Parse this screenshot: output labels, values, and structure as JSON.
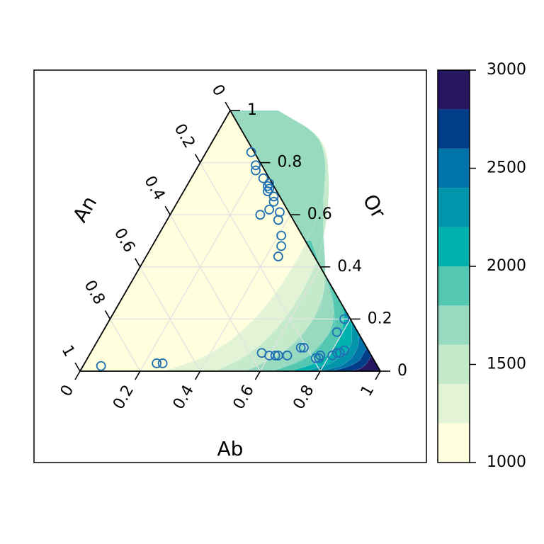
{
  "chart_data": {
    "type": "ternary-contour",
    "axes": {
      "bottom": {
        "label": "Ab",
        "ticks": [
          "0",
          "0.2",
          "0.4",
          "0.6",
          "0.8",
          "1"
        ]
      },
      "left": {
        "label": "An",
        "ticks": [
          "1",
          "0.8",
          "0.6",
          "0.4",
          "0.2",
          "0"
        ]
      },
      "right": {
        "label": "Or",
        "ticks": [
          "0",
          "0.2",
          "0.4",
          "0.6",
          "0.8",
          "1"
        ]
      }
    },
    "grid": true,
    "legend": {
      "placement": "right",
      "range": [
        1000,
        3000
      ],
      "tick_labels": [
        "1000",
        "1500",
        "2000",
        "2500",
        "3000"
      ],
      "levels": [
        {
          "from": 1000,
          "to": 1200,
          "color": "#FFFFDD"
        },
        {
          "from": 1200,
          "to": 1400,
          "color": "#E3F4D6"
        },
        {
          "from": 1400,
          "to": 1600,
          "color": "#C5EAC9"
        },
        {
          "from": 1600,
          "to": 1800,
          "color": "#98DAC0"
        },
        {
          "from": 1800,
          "to": 2000,
          "color": "#54C7B2"
        },
        {
          "from": 2000,
          "to": 2200,
          "color": "#00B2AE"
        },
        {
          "from": 2200,
          "to": 2400,
          "color": "#0095AA"
        },
        {
          "from": 2400,
          "to": 2600,
          "color": "#0073A8"
        },
        {
          "from": 2600,
          "to": 2800,
          "color": "#003E8A"
        },
        {
          "from": 2800,
          "to": 3000,
          "color": "#271762"
        }
      ]
    },
    "point_color": "#1F6FB4",
    "points": [
      {
        "Ab": 0.06,
        "Or": 0.02
      },
      {
        "Ab": 0.24,
        "Or": 0.03
      },
      {
        "Ab": 0.26,
        "Or": 0.03
      },
      {
        "Ab": 0.57,
        "Or": 0.07
      },
      {
        "Ab": 0.6,
        "Or": 0.06
      },
      {
        "Ab": 0.62,
        "Or": 0.06
      },
      {
        "Ab": 0.63,
        "Or": 0.06
      },
      {
        "Ab": 0.66,
        "Or": 0.06
      },
      {
        "Ab": 0.69,
        "Or": 0.09
      },
      {
        "Ab": 0.7,
        "Or": 0.09
      },
      {
        "Ab": 0.76,
        "Or": 0.05
      },
      {
        "Ab": 0.77,
        "Or": 0.05
      },
      {
        "Ab": 0.77,
        "Or": 0.06
      },
      {
        "Ab": 0.81,
        "Or": 0.06
      },
      {
        "Ab": 0.82,
        "Or": 0.07
      },
      {
        "Ab": 0.83,
        "Or": 0.07
      },
      {
        "Ab": 0.84,
        "Or": 0.08
      },
      {
        "Ab": 0.78,
        "Or": 0.15
      },
      {
        "Ab": 0.78,
        "Or": 0.2
      },
      {
        "Ab": 0.44,
        "Or": 0.44
      },
      {
        "Ab": 0.43,
        "Or": 0.48
      },
      {
        "Ab": 0.41,
        "Or": 0.52
      },
      {
        "Ab": 0.37,
        "Or": 0.58
      },
      {
        "Ab": 0.3,
        "Or": 0.6
      },
      {
        "Ab": 0.36,
        "Or": 0.61
      },
      {
        "Ab": 0.32,
        "Or": 0.62
      },
      {
        "Ab": 0.32,
        "Or": 0.65
      },
      {
        "Ab": 0.31,
        "Or": 0.67
      },
      {
        "Ab": 0.28,
        "Or": 0.69
      },
      {
        "Ab": 0.28,
        "Or": 0.7
      },
      {
        "Ab": 0.27,
        "Or": 0.71
      },
      {
        "Ab": 0.27,
        "Or": 0.72
      },
      {
        "Ab": 0.24,
        "Or": 0.74
      },
      {
        "Ab": 0.2,
        "Or": 0.77
      },
      {
        "Ab": 0.19,
        "Or": 0.79
      },
      {
        "Ab": 0.15,
        "Or": 0.84
      }
    ],
    "contour_boundaries": [
      {
        "level": 1200,
        "path": [
          [
            0.28,
            0.0
          ],
          [
            0.4,
            0.06
          ],
          [
            0.47,
            0.16
          ],
          [
            0.5,
            0.28
          ],
          [
            0.51,
            0.42
          ],
          [
            0.5,
            0.56
          ],
          [
            0.47,
            0.7
          ],
          [
            0.42,
            0.82
          ],
          [
            0.34,
            0.91
          ],
          [
            0.16,
            1.0
          ]
        ]
      },
      {
        "level": 1400,
        "path": [
          [
            0.45,
            0.0
          ],
          [
            0.52,
            0.05
          ],
          [
            0.57,
            0.14
          ],
          [
            0.59,
            0.27
          ],
          [
            0.58,
            0.42
          ],
          [
            0.54,
            0.56
          ],
          [
            0.48,
            0.7
          ],
          [
            0.42,
            0.81
          ],
          [
            0.34,
            0.91
          ],
          [
            0.16,
            1.0
          ]
        ]
      },
      {
        "level": 1600,
        "path": [
          [
            0.55,
            0.0
          ],
          [
            0.62,
            0.05
          ],
          [
            0.67,
            0.12
          ],
          [
            0.68,
            0.24
          ],
          [
            0.64,
            0.36
          ],
          [
            0.55,
            0.52
          ],
          [
            0.48,
            0.66
          ],
          [
            0.42,
            0.8
          ],
          [
            0.34,
            0.91
          ],
          [
            0.16,
            1.0
          ]
        ]
      },
      {
        "level": 1800,
        "path": [
          [
            0.64,
            0.0
          ],
          [
            0.72,
            0.04
          ],
          [
            0.75,
            0.09
          ],
          [
            0.76,
            0.18
          ],
          [
            0.69,
            0.3
          ],
          [
            0.6,
            0.4
          ],
          [
            0.52,
            0.5
          ]
        ]
      },
      {
        "level": 2000,
        "path": [
          [
            0.7,
            0.0
          ],
          [
            0.77,
            0.03
          ],
          [
            0.8,
            0.07
          ],
          [
            0.8,
            0.15
          ],
          [
            0.76,
            0.24
          ],
          [
            0.72,
            0.28
          ]
        ]
      },
      {
        "level": 2200,
        "path": [
          [
            0.75,
            0.0
          ],
          [
            0.82,
            0.03
          ],
          [
            0.85,
            0.07
          ],
          [
            0.85,
            0.11
          ],
          [
            0.81,
            0.19
          ]
        ]
      },
      {
        "level": 2400,
        "path": [
          [
            0.8,
            0.0
          ],
          [
            0.86,
            0.02
          ],
          [
            0.88,
            0.05
          ],
          [
            0.88,
            0.09
          ],
          [
            0.86,
            0.14
          ]
        ]
      },
      {
        "level": 2600,
        "path": [
          [
            0.84,
            0.0
          ],
          [
            0.89,
            0.02
          ],
          [
            0.91,
            0.04
          ],
          [
            0.91,
            0.07
          ],
          [
            0.91,
            0.09
          ]
        ]
      },
      {
        "level": 2800,
        "path": [
          [
            0.9,
            0.0
          ],
          [
            0.93,
            0.01
          ],
          [
            0.94,
            0.03
          ],
          [
            0.94,
            0.05
          ],
          [
            0.94,
            0.06
          ]
        ]
      }
    ]
  }
}
